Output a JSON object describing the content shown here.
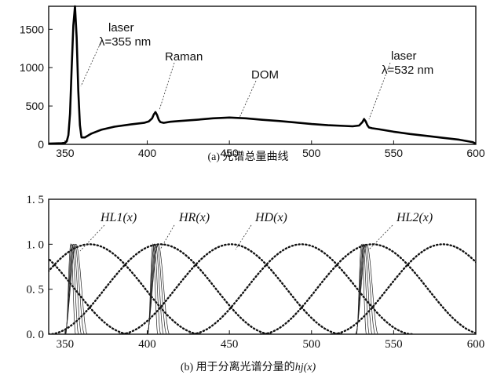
{
  "chart_data": [
    {
      "type": "line",
      "caption": "(a) 光谱总量曲线",
      "xlim": [
        340,
        600
      ],
      "ylim": [
        0,
        1800
      ],
      "x_ticks": [
        350,
        400,
        450,
        500,
        550,
        600
      ],
      "y_ticks": [
        0,
        500,
        1000,
        1500
      ],
      "grid": false,
      "series": [
        {
          "x": [
            340,
            344,
            348,
            350,
            351,
            352,
            353,
            354,
            355,
            356,
            357,
            358,
            359,
            360,
            362,
            366,
            372,
            380,
            390,
            398,
            401,
            403,
            404,
            405,
            406,
            407,
            408,
            410,
            414,
            420,
            430,
            440,
            450,
            460,
            470,
            480,
            490,
            500,
            510,
            520,
            525,
            529,
            531,
            532,
            533,
            534,
            535,
            537,
            540,
            550,
            560,
            570,
            580,
            590,
            598,
            600
          ],
          "y": [
            10,
            12,
            15,
            20,
            40,
            120,
            400,
            1000,
            1550,
            1800,
            1400,
            700,
            250,
            90,
            90,
            140,
            190,
            230,
            260,
            280,
            300,
            340,
            390,
            420,
            380,
            320,
            290,
            280,
            295,
            305,
            320,
            340,
            350,
            340,
            320,
            305,
            285,
            265,
            250,
            240,
            235,
            245,
            290,
            330,
            300,
            250,
            220,
            210,
            200,
            165,
            135,
            110,
            85,
            60,
            30,
            10
          ]
        }
      ],
      "annotations": [
        {
          "lines": [
            "laser",
            "λ=355 nm"
          ]
        },
        {
          "lines": [
            "Raman"
          ]
        },
        {
          "lines": [
            "DOM"
          ]
        },
        {
          "lines": [
            "laser",
            "λ=532 nm"
          ]
        }
      ]
    },
    {
      "type": "line",
      "caption_prefix": "(b) 用于分离光谱分量的",
      "caption_math": "hj(x)",
      "xlim": [
        340,
        600
      ],
      "ylim": [
        0,
        1.5
      ],
      "x_ticks": [
        350,
        400,
        450,
        500,
        550,
        600
      ],
      "y_ticks": [
        "0. 0",
        "0. 5",
        "1. 0",
        "1. 5"
      ],
      "y_tick_values": [
        0.0,
        0.5,
        1.0,
        1.5
      ],
      "grid": false,
      "bell_functions": {
        "centers": [
          322,
          365,
          408,
          451,
          494,
          537,
          580
        ],
        "half_width_at_zero": 68,
        "peak": 1.0
      },
      "narrow_functions": {
        "centers": [
          355,
          405,
          532
        ],
        "count_per_center": 5,
        "half_width_range": [
          3,
          7
        ],
        "peak": 1.0
      },
      "annotations": [
        {
          "label": "HL1(x)"
        },
        {
          "label": "HR(x)"
        },
        {
          "label": "HD(x)"
        },
        {
          "label": "HL2(x)"
        }
      ]
    }
  ]
}
